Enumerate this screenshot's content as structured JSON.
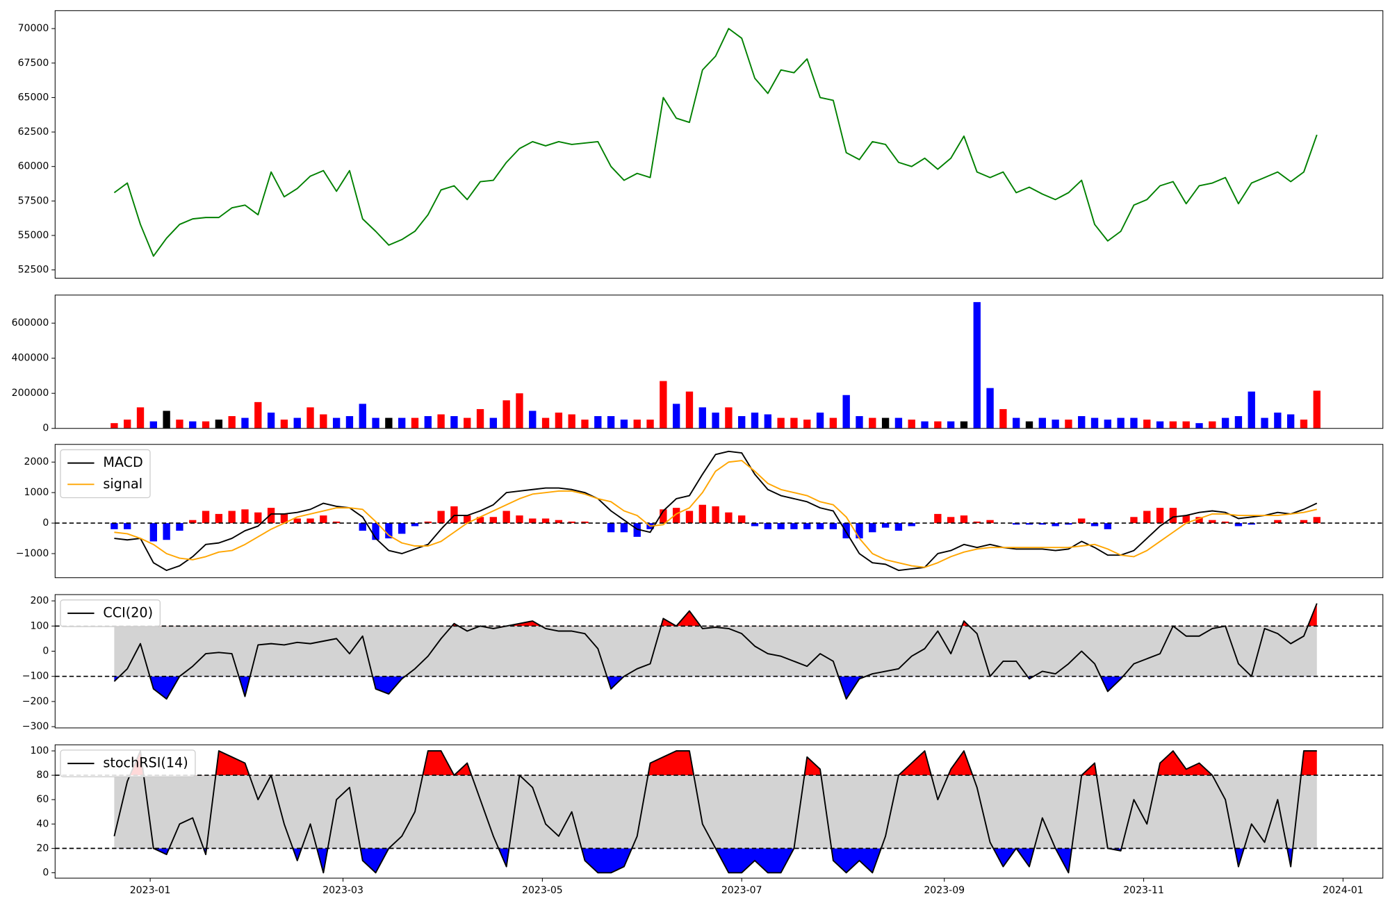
{
  "chart_data": {
    "type": "panels",
    "x": [
      19347,
      19351,
      19355,
      19359,
      19363,
      19367,
      19371,
      19375,
      19379,
      19383,
      19387,
      19391,
      19395,
      19399,
      19403,
      19407,
      19411,
      19415,
      19419,
      19423,
      19427,
      19431,
      19435,
      19439,
      19443,
      19447,
      19451,
      19455,
      19459,
      19463,
      19467,
      19471,
      19475,
      19479,
      19483,
      19487,
      19491,
      19495,
      19499,
      19503,
      19507,
      19511,
      19515,
      19519,
      19523,
      19527,
      19531,
      19535,
      19539,
      19543,
      19547,
      19551,
      19555,
      19559,
      19563,
      19567,
      19571,
      19575,
      19579,
      19583,
      19587,
      19591,
      19595,
      19599,
      19603,
      19607,
      19611,
      19615,
      19619,
      19623,
      19627,
      19631,
      19635,
      19639,
      19643,
      19647,
      19651,
      19655,
      19659,
      19663,
      19667,
      19671,
      19675,
      19679,
      19683,
      19687,
      19691,
      19695,
      19699,
      19703,
      19707,
      19711,
      19715
    ],
    "xlim": [
      19328.9,
      19735.2
    ],
    "xticks": [
      {
        "value": 19358,
        "label": "2023-01"
      },
      {
        "value": 19417,
        "label": "2023-03"
      },
      {
        "value": 19478,
        "label": "2023-05"
      },
      {
        "value": 19539,
        "label": "2023-07"
      },
      {
        "value": 19601,
        "label": "2023-09"
      },
      {
        "value": 19662,
        "label": "2023-11"
      },
      {
        "value": 19723,
        "label": "2024-01"
      }
    ],
    "panels": [
      {
        "type": "line",
        "ylim": [
          51900,
          71300
        ],
        "yticks": [
          52500,
          55000,
          57500,
          60000,
          62500,
          65000,
          67500,
          70000
        ],
        "series": [
          {
            "color": "green",
            "values": [
              58100,
              58800,
              55800,
              53500,
              54800,
              55800,
              56200,
              56300,
              56300,
              57000,
              57200,
              56500,
              59600,
              57800,
              58400,
              59300,
              59700,
              58200,
              59700,
              56200,
              55300,
              54300,
              54700,
              55300,
              56500,
              58300,
              58600,
              57600,
              58900,
              59000,
              60300,
              61300,
              61800,
              61500,
              61800,
              61600,
              61700,
              61800,
              60000,
              59000,
              59500,
              59200,
              65000,
              63500,
              63200,
              67000,
              68000,
              70000,
              69300,
              66400,
              65300,
              67000,
              66800,
              67800,
              65000,
              64800,
              61000,
              60500,
              61800,
              61600,
              60300,
              60000,
              60600,
              59800,
              60600,
              62200,
              59600,
              59200,
              59600,
              58100,
              58500,
              58000,
              57600,
              58100,
              59000,
              55800,
              54600,
              55300,
              57200,
              57600,
              58600,
              58900,
              57300,
              58600,
              58800,
              59200,
              57300,
              58800,
              59200,
              59600,
              58900,
              59600,
              62300
            ]
          }
        ]
      },
      {
        "type": "bar",
        "ylim": [
          0,
          760000
        ],
        "yticks": [
          0,
          200000,
          400000,
          600000
        ],
        "series": [
          {
            "values": [
              30000,
              50000,
              120000,
              40000,
              100000,
              50000,
              40000,
              40000,
              50000,
              70000,
              60000,
              150000,
              90000,
              50000,
              60000,
              120000,
              80000,
              60000,
              70000,
              140000,
              60000,
              60000,
              60000,
              60000,
              70000,
              80000,
              70000,
              60000,
              110000,
              60000,
              160000,
              200000,
              100000,
              60000,
              90000,
              80000,
              50000,
              70000,
              70000,
              50000,
              50000,
              50000,
              270000,
              140000,
              210000,
              120000,
              90000,
              120000,
              70000,
              90000,
              80000,
              60000,
              60000,
              50000,
              90000,
              60000,
              190000,
              70000,
              60000,
              60000,
              60000,
              50000,
              40000,
              40000,
              40000,
              40000,
              720000,
              230000,
              110000,
              60000,
              40000,
              60000,
              50000,
              50000,
              70000,
              60000,
              50000,
              60000,
              60000,
              50000,
              40000,
              40000,
              40000,
              30000,
              40000,
              60000,
              70000,
              210000,
              60000,
              90000,
              80000,
              50000,
              215000
            ],
            "colors": [
              "red",
              "red",
              "red",
              "blue",
              "black",
              "red",
              "blue",
              "red",
              "black",
              "red",
              "blue",
              "red",
              "blue",
              "red",
              "blue",
              "red",
              "red",
              "blue",
              "blue",
              "blue",
              "blue",
              "black",
              "blue",
              "red",
              "blue",
              "red",
              "blue",
              "red",
              "red",
              "blue",
              "red",
              "red",
              "blue",
              "red",
              "red",
              "red",
              "red",
              "blue",
              "blue",
              "blue",
              "red",
              "red",
              "red",
              "blue",
              "red",
              "blue",
              "blue",
              "red",
              "blue",
              "blue",
              "blue",
              "red",
              "red",
              "red",
              "blue",
              "red",
              "blue",
              "blue",
              "red",
              "black",
              "blue",
              "red",
              "blue",
              "red",
              "blue",
              "black",
              "blue",
              "blue",
              "red",
              "blue",
              "black",
              "blue",
              "blue",
              "red",
              "blue",
              "blue",
              "blue",
              "blue",
              "blue",
              "red",
              "blue",
              "red",
              "red",
              "blue",
              "red",
              "blue",
              "blue",
              "blue",
              "blue",
              "blue",
              "blue",
              "red",
              "red"
            ]
          }
        ]
      },
      {
        "type": "macd",
        "ylim": [
          -1790,
          2580
        ],
        "yticks": [
          {
            "value": -1000,
            "label": "−1000"
          },
          0,
          1000,
          2000
        ],
        "hlines": [
          0
        ],
        "legend": "upper left",
        "histogram": {
          "up_color": "red",
          "down_color": "blue",
          "values": [
            -200,
            -200,
            0,
            -600,
            -550,
            -250,
            100,
            400,
            300,
            400,
            450,
            350,
            500,
            300,
            150,
            150,
            250,
            50,
            0,
            -250,
            -550,
            -500,
            -350,
            -100,
            50,
            400,
            550,
            250,
            200,
            200,
            400,
            250,
            150,
            150,
            100,
            50,
            50,
            0,
            -300,
            -300,
            -450,
            -200,
            450,
            500,
            400,
            600,
            550,
            350,
            250,
            -100,
            -200,
            -200,
            -200,
            -200,
            -200,
            -200,
            -500,
            -500,
            -300,
            -150,
            -250,
            -100,
            0,
            300,
            200,
            250,
            50,
            100,
            0,
            -50,
            -50,
            -50,
            -100,
            -50,
            150,
            -100,
            -200,
            0,
            200,
            400,
            500,
            500,
            250,
            200,
            100,
            50,
            -100,
            -50,
            0,
            100,
            0,
            100,
            200
          ]
        },
        "series": [
          {
            "name": "MACD",
            "color": "black",
            "values": [
              -500,
              -550,
              -500,
              -1300,
              -1550,
              -1400,
              -1100,
              -700,
              -650,
              -500,
              -250,
              -100,
              300,
              300,
              350,
              450,
              650,
              550,
              500,
              200,
              -500,
              -900,
              -1000,
              -850,
              -700,
              -200,
              250,
              250,
              400,
              600,
              1000,
              1050,
              1100,
              1150,
              1150,
              1100,
              1000,
              800,
              400,
              100,
              -200,
              -300,
              400,
              800,
              900,
              1600,
              2250,
              2350,
              2300,
              1600,
              1100,
              900,
              800,
              700,
              500,
              400,
              -300,
              -1000,
              -1300,
              -1350,
              -1550,
              -1500,
              -1450,
              -1000,
              -900,
              -700,
              -800,
              -700,
              -800,
              -850,
              -850,
              -850,
              -900,
              -850,
              -600,
              -800,
              -1050,
              -1050,
              -900,
              -500,
              -100,
              200,
              250,
              350,
              400,
              350,
              150,
              200,
              250,
              350,
              300,
              450,
              650
            ]
          },
          {
            "name": "signal",
            "color": "orange",
            "values": [
              -300,
              -350,
              -500,
              -700,
              -1000,
              -1150,
              -1200,
              -1100,
              -950,
              -900,
              -700,
              -450,
              -200,
              0,
              200,
              300,
              400,
              500,
              500,
              450,
              50,
              -400,
              -650,
              -750,
              -750,
              -600,
              -300,
              0,
              200,
              400,
              600,
              800,
              950,
              1000,
              1050,
              1050,
              950,
              800,
              700,
              400,
              250,
              -100,
              -50,
              300,
              500,
              1000,
              1700,
              2000,
              2050,
              1700,
              1300,
              1100,
              1000,
              900,
              700,
              600,
              200,
              -500,
              -1000,
              -1200,
              -1300,
              -1400,
              -1450,
              -1300,
              -1100,
              -950,
              -850,
              -800,
              -800,
              -800,
              -800,
              -800,
              -800,
              -800,
              -750,
              -700,
              -850,
              -1050,
              -1100,
              -900,
              -600,
              -300,
              0,
              150,
              300,
              300,
              250,
              250,
              250,
              250,
              300,
              350,
              450
            ]
          }
        ]
      },
      {
        "type": "band",
        "ylim": [
          -305,
          225
        ],
        "yticks": [
          {
            "value": -300,
            "label": "−300"
          },
          {
            "value": -200,
            "label": "−200"
          },
          {
            "value": -100,
            "label": "−100"
          },
          0,
          100,
          200
        ],
        "band": [
          -100,
          100
        ],
        "band_color": "lightgray",
        "above_color": "red",
        "below_color": "blue",
        "hlines": [
          -100,
          100
        ],
        "legend": "upper left",
        "series": [
          {
            "name": "CCI(20)",
            "color": "black",
            "values": [
              -120,
              -70,
              30,
              -150,
              -190,
              -100,
              -60,
              -10,
              -5,
              -10,
              -180,
              25,
              30,
              25,
              35,
              30,
              40,
              50,
              -10,
              60,
              -150,
              -170,
              -110,
              -70,
              -20,
              50,
              110,
              80,
              100,
              90,
              100,
              110,
              120,
              90,
              80,
              80,
              70,
              10,
              -150,
              -100,
              -70,
              -50,
              130,
              100,
              160,
              90,
              95,
              90,
              70,
              20,
              -10,
              -20,
              -40,
              -60,
              -10,
              -40,
              -190,
              -110,
              -90,
              -80,
              -70,
              -20,
              10,
              80,
              -10,
              120,
              70,
              -100,
              -40,
              -40,
              -110,
              -80,
              -90,
              -50,
              0,
              -50,
              -160,
              -110,
              -50,
              -30,
              -10,
              100,
              60,
              60,
              90,
              100,
              -50,
              -100,
              90,
              70,
              30,
              60,
              190
            ]
          }
        ]
      },
      {
        "type": "band",
        "ylim": [
          -4.4,
          105
        ],
        "yticks": [
          0,
          20,
          40,
          60,
          80,
          100
        ],
        "band": [
          20,
          80
        ],
        "band_color": "lightgray",
        "above_color": "red",
        "below_color": "blue",
        "hlines": [
          20,
          80
        ],
        "legend": "upper left",
        "series": [
          {
            "name": "stochRSI(14)",
            "color": "black",
            "values": [
              30,
              75,
              100,
              20,
              15,
              40,
              45,
              15,
              100,
              95,
              90,
              60,
              80,
              40,
              10,
              40,
              0,
              60,
              70,
              10,
              0,
              20,
              30,
              50,
              100,
              100,
              80,
              90,
              60,
              30,
              5,
              80,
              70,
              40,
              30,
              50,
              10,
              0,
              0,
              5,
              30,
              90,
              95,
              100,
              100,
              40,
              20,
              0,
              0,
              10,
              0,
              0,
              20,
              95,
              85,
              10,
              0,
              10,
              0,
              30,
              80,
              90,
              100,
              60,
              85,
              100,
              70,
              25,
              5,
              20,
              5,
              45,
              20,
              0,
              80,
              90,
              20,
              18,
              60,
              40,
              90,
              100,
              85,
              90,
              80,
              60,
              5,
              40,
              25,
              60,
              5,
              100,
              100
            ]
          }
        ]
      }
    ]
  }
}
